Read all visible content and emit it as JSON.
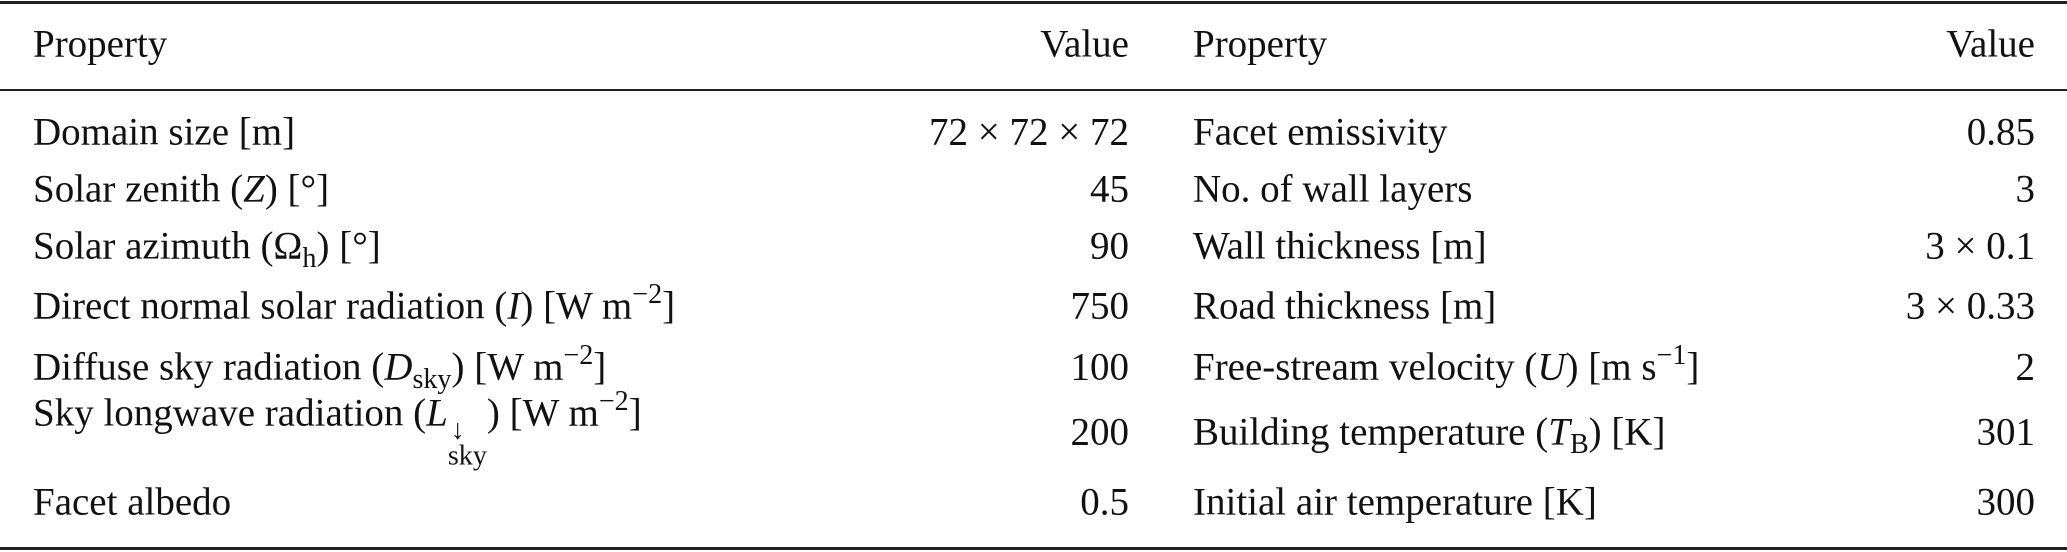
{
  "header": {
    "property_1": "Property",
    "value_1": "Value",
    "property_2": "Property",
    "value_2": "Value"
  },
  "rows_left": [
    {
      "label": [
        {
          "t": "Domain size [m]"
        }
      ],
      "value": "72 × 72 × 72"
    },
    {
      "label": [
        {
          "t": "Solar zenith ("
        },
        {
          "i": "Z"
        },
        {
          "t": ") [°]"
        }
      ],
      "value": "45"
    },
    {
      "label": [
        {
          "t": "Solar azimuth (Ω"
        },
        {
          "sub": "h"
        },
        {
          "t": ") [°]"
        }
      ],
      "value": "90"
    },
    {
      "label": [
        {
          "t": "Direct normal solar radiation ("
        },
        {
          "i": "I"
        },
        {
          "t": ") [W m"
        },
        {
          "sup": "−2"
        },
        {
          "t": "]"
        }
      ],
      "value": "750"
    },
    {
      "label": [
        {
          "t": "Diffuse sky radiation ("
        },
        {
          "i": "D"
        },
        {
          "sub": "sky"
        },
        {
          "t": ") [W m"
        },
        {
          "sup": "−2"
        },
        {
          "t": "]"
        }
      ],
      "value": "100"
    },
    {
      "label": [
        {
          "t": "Sky longwave radiation ("
        },
        {
          "i": "L"
        },
        {
          "supsub": [
            "↓",
            "sky"
          ]
        },
        {
          "t": ") [W m"
        },
        {
          "sup": "−2"
        },
        {
          "t": "]"
        }
      ],
      "value": "200"
    },
    {
      "label": [
        {
          "t": "Facet albedo"
        }
      ],
      "value": "0.5"
    }
  ],
  "rows_right": [
    {
      "label": [
        {
          "t": "Facet emissivity"
        }
      ],
      "value": "0.85"
    },
    {
      "label": [
        {
          "t": "No. of wall layers"
        }
      ],
      "value": "3"
    },
    {
      "label": [
        {
          "t": "Wall thickness [m]"
        }
      ],
      "value": "3 × 0.1"
    },
    {
      "label": [
        {
          "t": "Road thickness [m]"
        }
      ],
      "value": "3 × 0.33"
    },
    {
      "label": [
        {
          "t": "Free-stream velocity ("
        },
        {
          "i": "U"
        },
        {
          "t": ") [m s"
        },
        {
          "sup": "−1"
        },
        {
          "t": "]"
        }
      ],
      "value": "2"
    },
    {
      "label": [
        {
          "t": "Building temperature ("
        },
        {
          "i": "T"
        },
        {
          "sub": "B"
        },
        {
          "t": ") [K]"
        }
      ],
      "value": "301"
    },
    {
      "label": [
        {
          "t": "Initial air temperature [K]"
        }
      ],
      "value": "300"
    }
  ]
}
